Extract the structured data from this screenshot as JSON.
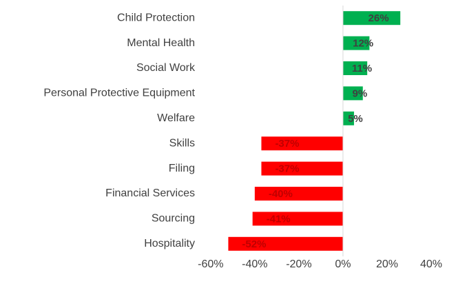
{
  "chart_data": {
    "type": "hbar",
    "categories": [
      "Child Protection",
      "Mental Health",
      "Social Work",
      "Personal Protective Equipment",
      "Welfare",
      "Skills",
      "Filing",
      "Financial Services",
      "Sourcing",
      "Hospitality"
    ],
    "values": [
      26,
      12,
      11,
      9,
      5,
      -37,
      -37,
      -40,
      -41,
      -52
    ],
    "value_labels": [
      "26%",
      "12%",
      "11%",
      "9%",
      "5%",
      "-37%",
      "-37%",
      "-40%",
      "-41%",
      "-52%"
    ],
    "color_positive": "#00b050",
    "color_negative": "#ff0000",
    "label_color_positive": "#404040",
    "label_color_negative": "#c00000",
    "xlim": [
      -61.5,
      40
    ],
    "xticks": [
      {
        "value": -60,
        "label": "-60%"
      },
      {
        "value": -40,
        "label": "-40%"
      },
      {
        "value": -20,
        "label": "-20%"
      },
      {
        "value": 0,
        "label": "0%"
      },
      {
        "value": 20,
        "label": "20%"
      },
      {
        "value": 40,
        "label": "40%"
      }
    ],
    "grid": false
  }
}
